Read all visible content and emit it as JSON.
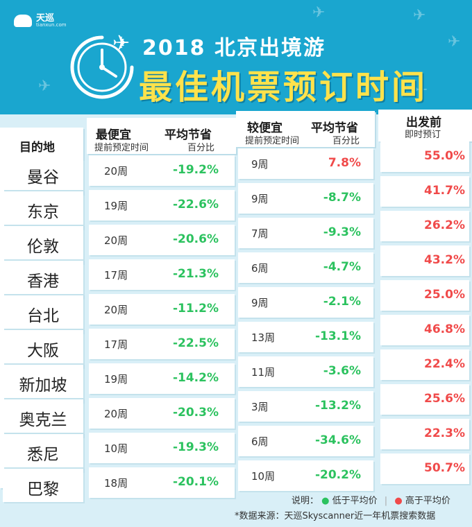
{
  "colors": {
    "header_bg": "#1aa6cf",
    "title_yellow": "#ffe24b",
    "below_avg": "#2cc25f",
    "above_avg": "#f04a4a"
  },
  "logo": {
    "name": "天巡",
    "sub": "tianxun.com",
    "icon": "cloud-wifi-icon"
  },
  "header": {
    "title_line1": "2018 北京出境游",
    "title_line2": "最佳机票预订时间",
    "icon": "clock-plane-icon"
  },
  "chart_data": {
    "type": "table",
    "columns": {
      "destination": "目的地",
      "cheapest_title": "最便宜",
      "cheapest_sub": "提前预定时间",
      "cheapest_save_title": "平均节省",
      "cheapest_save_sub": "百分比",
      "cheaper_title": "较便宜",
      "cheaper_sub": "提前预定时间",
      "cheaper_save_title": "平均节省",
      "cheaper_save_sub": "百分比",
      "lastminute_title": "出发前",
      "lastminute_sub": "即时预订"
    },
    "rows": [
      {
        "dest": "曼谷",
        "cheap_wk": "20周",
        "cheap_pct": "-19.2%",
        "cheaper_wk": "9周",
        "cheaper_pct": "7.8%",
        "cheaper_red": true,
        "last_pct": "55.0%"
      },
      {
        "dest": "东京",
        "cheap_wk": "19周",
        "cheap_pct": "-22.6%",
        "cheaper_wk": "9周",
        "cheaper_pct": "-8.7%",
        "cheaper_red": false,
        "last_pct": "41.7%"
      },
      {
        "dest": "伦敦",
        "cheap_wk": "20周",
        "cheap_pct": "-20.6%",
        "cheaper_wk": "7周",
        "cheaper_pct": "-9.3%",
        "cheaper_red": false,
        "last_pct": "26.2%"
      },
      {
        "dest": "香港",
        "cheap_wk": "17周",
        "cheap_pct": "-21.3%",
        "cheaper_wk": "6周",
        "cheaper_pct": "-4.7%",
        "cheaper_red": false,
        "last_pct": "43.2%"
      },
      {
        "dest": "台北",
        "cheap_wk": "20周",
        "cheap_pct": "-11.2%",
        "cheaper_wk": "9周",
        "cheaper_pct": "-2.1%",
        "cheaper_red": false,
        "last_pct": "25.0%"
      },
      {
        "dest": "大阪",
        "cheap_wk": "17周",
        "cheap_pct": "-22.5%",
        "cheaper_wk": "13周",
        "cheaper_pct": "-13.1%",
        "cheaper_red": false,
        "last_pct": "46.8%"
      },
      {
        "dest": "新加坡",
        "cheap_wk": "19周",
        "cheap_pct": "-14.2%",
        "cheaper_wk": "11周",
        "cheaper_pct": "-3.6%",
        "cheaper_red": false,
        "last_pct": "22.4%"
      },
      {
        "dest": "奥克兰",
        "cheap_wk": "20周",
        "cheap_pct": "-20.3%",
        "cheaper_wk": "3周",
        "cheaper_pct": "-13.2%",
        "cheaper_red": false,
        "last_pct": "25.6%"
      },
      {
        "dest": "悉尼",
        "cheap_wk": "10周",
        "cheap_pct": "-19.3%",
        "cheaper_wk": "6周",
        "cheaper_pct": "-34.6%",
        "cheaper_red": false,
        "last_pct": "22.3%"
      },
      {
        "dest": "巴黎",
        "cheap_wk": "18周",
        "cheap_pct": "-20.1%",
        "cheaper_wk": "10周",
        "cheaper_pct": "-20.2%",
        "cheaper_red": false,
        "last_pct": "50.7%"
      }
    ]
  },
  "legend": {
    "prefix": "说明：",
    "green_label": "低于平均价",
    "red_label": "高于平均价"
  },
  "source": "*数据来源：天巡Skyscanner近一年机票搜索数据"
}
